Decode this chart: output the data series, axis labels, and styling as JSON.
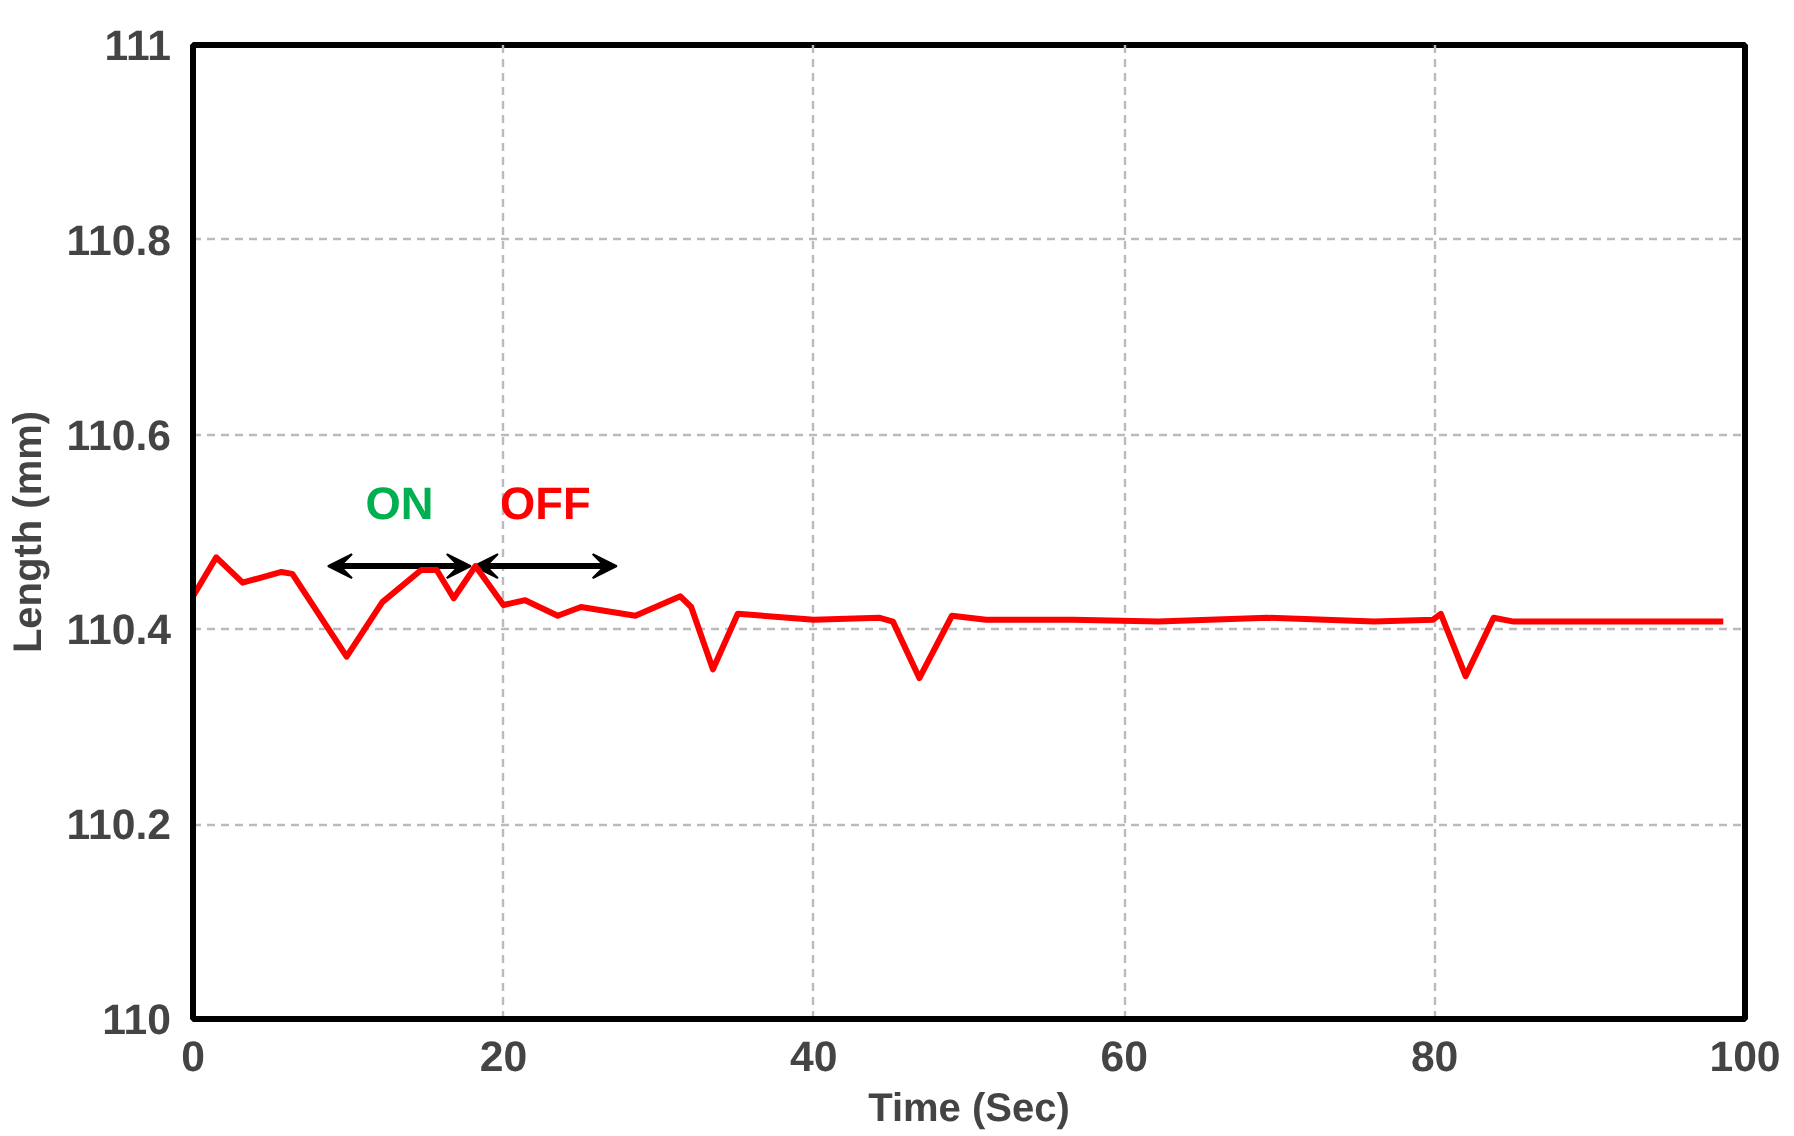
{
  "chart_data": {
    "type": "line",
    "xlabel": "Time (Sec)",
    "ylabel": "Length (mm)",
    "x": [
      0,
      1.5,
      3.2,
      5.7,
      6.4,
      9.9,
      12.2,
      14.7,
      15.7,
      16.8,
      18.2,
      20,
      21.4,
      23.5,
      25,
      28.5,
      31.4,
      32.1,
      33.5,
      35.1,
      40,
      44.2,
      45.1,
      46.8,
      48.9,
      51.1,
      56.7,
      62.2,
      69.2,
      76.1,
      79.9,
      80.4,
      82,
      83.8,
      85.1,
      98.6
    ],
    "series": [
      {
        "color": "#ff0000",
        "values": [
          110.434,
          110.474,
          110.448,
          110.459,
          110.457,
          110.372,
          110.428,
          110.461,
          110.461,
          110.432,
          110.465,
          110.425,
          110.43,
          110.414,
          110.423,
          110.414,
          110.434,
          110.423,
          110.359,
          110.416,
          110.41,
          110.412,
          110.408,
          110.35,
          110.414,
          110.41,
          110.41,
          110.408,
          110.412,
          110.408,
          110.41,
          110.416,
          110.352,
          110.412,
          110.408,
          110.408
        ]
      }
    ],
    "xlim": [
      0,
      100
    ],
    "xticks": [
      0,
      20,
      40,
      60,
      80,
      100
    ],
    "ylim": [
      110,
      111
    ],
    "yticks": [
      {
        "value": 110,
        "label": "110"
      },
      110.2,
      110.4,
      110.6,
      110.8,
      {
        "value": 111,
        "label": "111"
      }
    ],
    "grid": true,
    "marker": "none",
    "line_style": "solid",
    "annotations": [
      "ON",
      "OFF"
    ]
  }
}
